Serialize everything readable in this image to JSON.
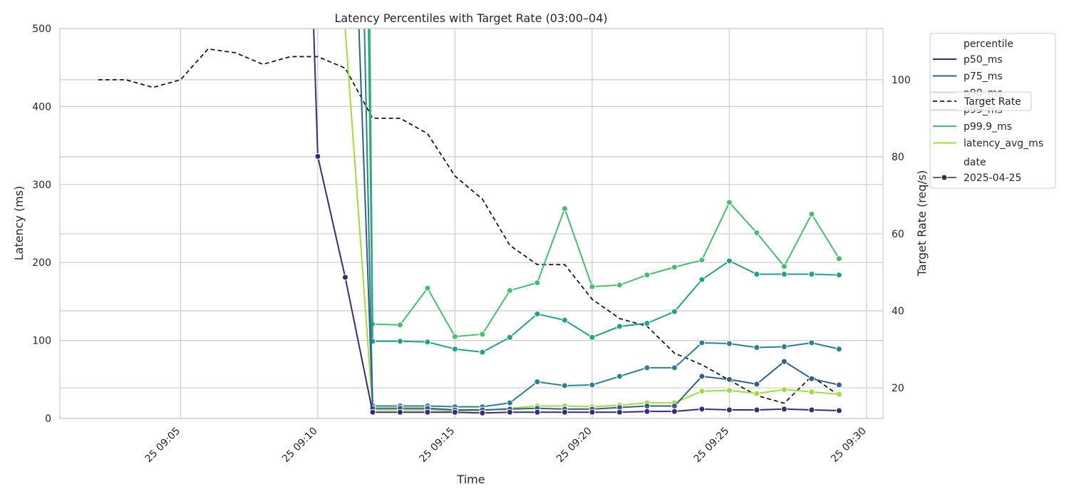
{
  "chart_data": {
    "type": "line",
    "title": "Latency Percentiles with Target Rate (03:00–04)",
    "xlabel": "Time",
    "ylabel": "Latency (ms)",
    "y2label": "Target Rate (req/s)",
    "x_ticks": [
      "25 09:05",
      "25 09:10",
      "25 09:15",
      "25 09:20",
      "25 09:25",
      "25 09:30"
    ],
    "y_ticks": [
      0,
      100,
      200,
      300,
      400,
      500
    ],
    "y2_ticks": [
      20,
      40,
      60,
      80,
      100
    ],
    "xlim": [
      "09:00.6",
      "09:30.6"
    ],
    "ylim": [
      0,
      500
    ],
    "y2lim": [
      12.05,
      113.3
    ],
    "grid": true,
    "legend_position": "outside right",
    "colors": {
      "p50_ms": "#3b2a7a",
      "p75_ms": "#335f8c",
      "p90_ms": "#2b818e",
      "p99_ms": "#21a186",
      "p99_9_ms": "#45bf6f",
      "latency_avg_ms": "#a2db3c",
      "target": "#1a1a1a"
    },
    "x": [
      "09:10",
      "09:11",
      "09:12",
      "09:13",
      "09:14",
      "09:15",
      "09:16",
      "09:17",
      "09:18",
      "09:19",
      "09:20",
      "09:21",
      "09:22",
      "09:23",
      "09:24",
      "09:25",
      "09:26",
      "09:27",
      "09:28",
      "09:29"
    ],
    "series": [
      {
        "name": "p50_ms",
        "key": "p50_ms",
        "steep": [
          [
            9.85,
            500
          ],
          [
            10,
            336
          ]
        ],
        "values": [
          336,
          181,
          8,
          8,
          8,
          8,
          7,
          8,
          8,
          8,
          8,
          8,
          9,
          9,
          12,
          11,
          11,
          12,
          11,
          10
        ]
      },
      {
        "name": "p75_ms",
        "key": "p75_ms",
        "steep": [
          [
            11.5,
            500
          ]
        ],
        "values": [
          null,
          null,
          13,
          13,
          13,
          11,
          11,
          12,
          13,
          12,
          12,
          14,
          16,
          16,
          54,
          50,
          44,
          73,
          51,
          43
        ]
      },
      {
        "name": "p90_ms",
        "key": "p90_ms",
        "steep": [
          [
            11.7,
            500
          ]
        ],
        "values": [
          null,
          null,
          16,
          16,
          16,
          15,
          15,
          20,
          47,
          42,
          43,
          54,
          65,
          65,
          97,
          96,
          91,
          92,
          97,
          89
        ]
      },
      {
        "name": "p99_ms",
        "key": "p99_ms",
        "steep": [
          [
            11.85,
            500
          ]
        ],
        "values": [
          null,
          null,
          99,
          99,
          98,
          89,
          85,
          104,
          134,
          126,
          104,
          118,
          122,
          137,
          178,
          202,
          185,
          185,
          185,
          184
        ]
      },
      {
        "name": "p99.9_ms",
        "key": "p99_9_ms",
        "steep": [
          [
            11.9,
            500
          ]
        ],
        "values": [
          null,
          null,
          121,
          120,
          167,
          105,
          108,
          164,
          174,
          269,
          169,
          171,
          184,
          194,
          203,
          277,
          238,
          195,
          262,
          205
        ]
      },
      {
        "name": "latency_avg_ms",
        "key": "latency_avg_ms",
        "steep": [
          [
            11.0,
            500
          ]
        ],
        "values": [
          null,
          null,
          11,
          11,
          11,
          10,
          10,
          13,
          16,
          16,
          15,
          17,
          20,
          20,
          35,
          36,
          32,
          37,
          34,
          31
        ]
      }
    ],
    "target_rate": {
      "name": "Target Rate",
      "x": [
        "09:02",
        "09:03",
        "09:04",
        "09:05",
        "09:06",
        "09:07",
        "09:08",
        "09:09",
        "09:10",
        "09:11",
        "09:12",
        "09:13",
        "09:14",
        "09:15",
        "09:16",
        "09:17",
        "09:18",
        "09:19",
        "09:20",
        "09:21",
        "09:22",
        "09:23",
        "09:24",
        "09:25",
        "09:26",
        "09:27",
        "09:28",
        "09:29"
      ],
      "values": [
        100,
        100,
        98,
        100,
        108,
        107,
        104,
        106,
        106,
        103,
        90,
        90,
        86,
        75,
        69,
        57,
        52,
        52,
        43,
        38,
        36,
        29,
        26,
        22,
        18,
        16,
        23,
        18
      ]
    },
    "legend": {
      "hue_title": "percentile",
      "items": [
        "p50_ms",
        "p75_ms",
        "p90_ms",
        "p99_ms",
        "p99.9_ms",
        "latency_avg_ms"
      ],
      "style_title": "date",
      "style_item": "2025-04-25",
      "target_label": "Target Rate"
    }
  }
}
